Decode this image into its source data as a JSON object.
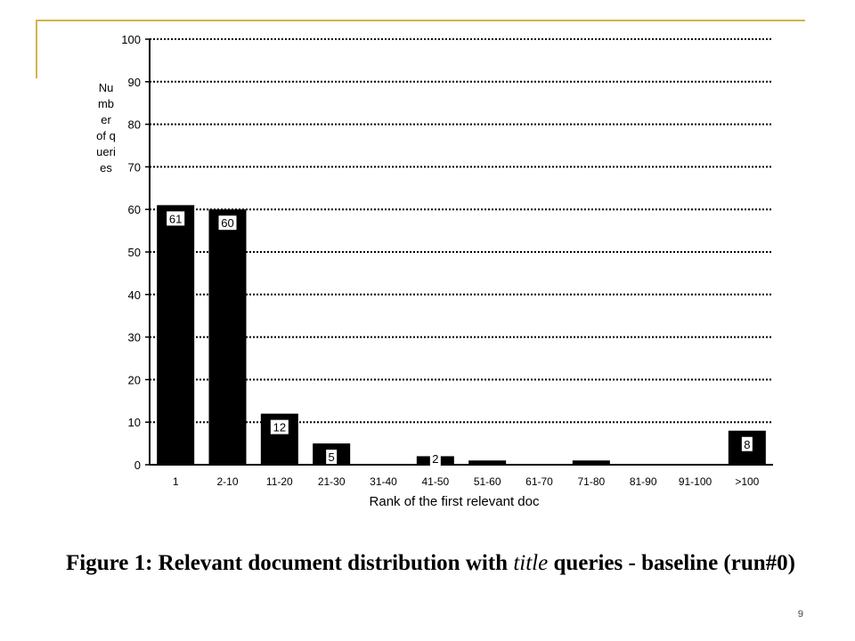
{
  "colors": {
    "accent": "#d4b44a",
    "bar": "#000000",
    "grid": "#000000",
    "label_box": "#ffffff"
  },
  "chart_data": {
    "type": "bar",
    "categories": [
      "1",
      "2-10",
      "11-20",
      "21-30",
      "31-40",
      "41-50",
      "51-60",
      "61-70",
      "71-80",
      "81-90",
      "91-100",
      ">100"
    ],
    "values": [
      61,
      60,
      12,
      5,
      0,
      2,
      1,
      0,
      1,
      0,
      0,
      8
    ],
    "data_labels": [
      "61",
      "60",
      "12",
      "5",
      "",
      "2",
      "",
      "",
      "",
      "",
      "",
      "8"
    ],
    "xlabel": "Rank of the first relevant doc",
    "ylabel": "Number of queries",
    "ylim": [
      0,
      100
    ],
    "yticks": [
      0,
      10,
      20,
      30,
      40,
      50,
      60,
      70,
      80,
      90,
      100
    ],
    "grid": true
  },
  "caption": {
    "prefix": "Figure 1:  Relevant document distribution with ",
    "emphasis": "title",
    "suffix": " queries - baseline (run#0)"
  },
  "page_number": "9"
}
